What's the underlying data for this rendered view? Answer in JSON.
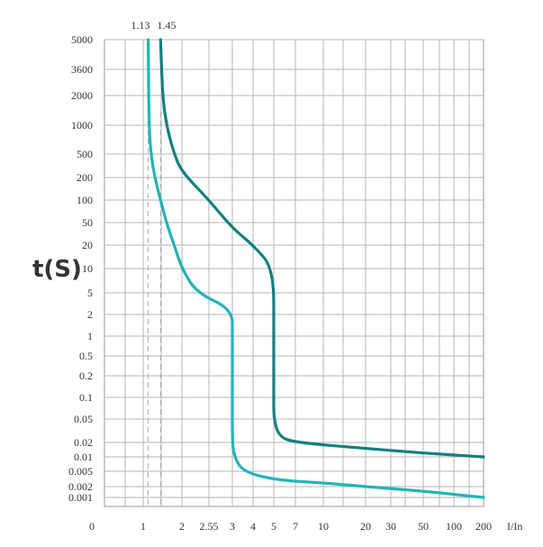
{
  "chart_data": {
    "type": "line",
    "ylabel": "t(S)",
    "xlabel": "I/In",
    "x_ticks": [
      "0",
      "1",
      "2",
      "2.55",
      "3",
      "4",
      "5",
      "7",
      "10",
      "20",
      "30",
      "50",
      "100",
      "200"
    ],
    "y_ticks": [
      "5000",
      "3600",
      "2000",
      "1000",
      "500",
      "200",
      "100",
      "50",
      "20",
      "10",
      "5",
      "2",
      "1",
      "0.5",
      "0.2",
      "0.1",
      "0.05",
      "0.02",
      "0.01",
      "0.005",
      "0.002",
      "0.001"
    ],
    "top_labels": [
      "1.13",
      "1.45"
    ],
    "markers": [
      1.13,
      1.45
    ],
    "grid": true,
    "series": [
      {
        "color": "#22b3b8",
        "points": [
          [
            1.13,
            5000
          ],
          [
            1.15,
            1000
          ],
          [
            1.2,
            500
          ],
          [
            1.3,
            200
          ],
          [
            1.45,
            100
          ],
          [
            1.6,
            50
          ],
          [
            1.8,
            20
          ],
          [
            2.0,
            10
          ],
          [
            2.3,
            5
          ],
          [
            3.0,
            2.5
          ],
          [
            3.0,
            1
          ],
          [
            3.0,
            0.1
          ],
          [
            3.0,
            0.02
          ],
          [
            3.1,
            0.01
          ],
          [
            3.5,
            0.005
          ],
          [
            5.0,
            0.003
          ],
          [
            10,
            0.0025
          ],
          [
            20,
            0.002
          ],
          [
            50,
            0.0015
          ],
          [
            200,
            0.001
          ]
        ]
      },
      {
        "color": "#137f80",
        "points": [
          [
            1.45,
            5000
          ],
          [
            1.5,
            2000
          ],
          [
            1.6,
            1000
          ],
          [
            1.8,
            500
          ],
          [
            2.0,
            250
          ],
          [
            2.55,
            100
          ],
          [
            3.0,
            40
          ],
          [
            4.0,
            20
          ],
          [
            5.0,
            10
          ],
          [
            5.0,
            1
          ],
          [
            5.0,
            0.1
          ],
          [
            5.0,
            0.05
          ],
          [
            5.5,
            0.025
          ],
          [
            7.0,
            0.02
          ],
          [
            20,
            0.015
          ],
          [
            50,
            0.012
          ],
          [
            200,
            0.01
          ]
        ]
      }
    ]
  }
}
